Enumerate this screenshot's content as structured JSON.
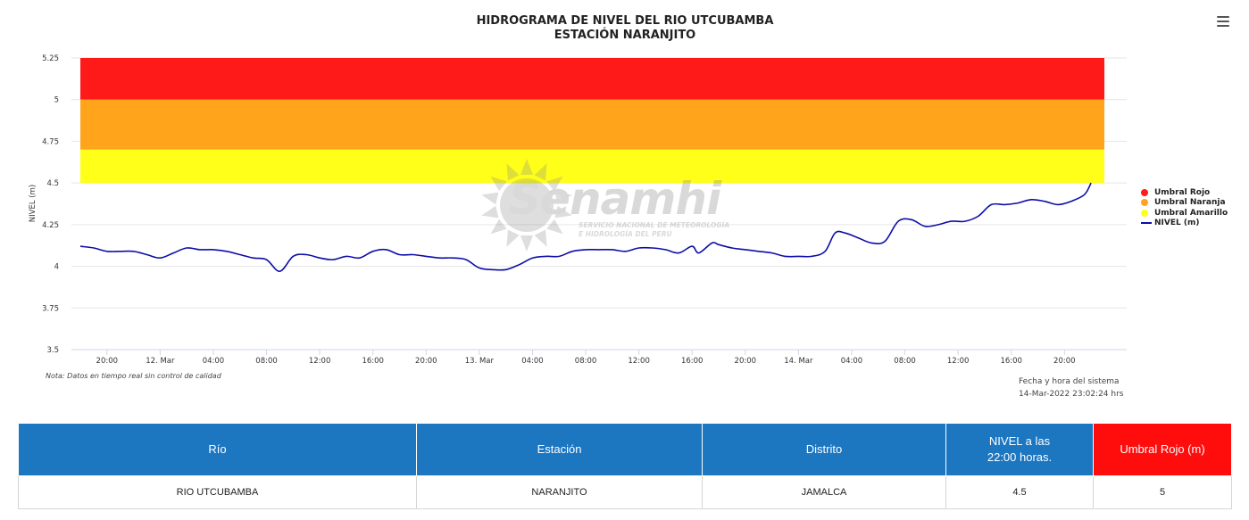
{
  "chart_data": {
    "type": "line",
    "title": "HIDROGRAMA DE NIVEL DEL RIO UTCUBAMBA",
    "subtitle": "ESTACIÓN NARANJITO",
    "ylabel": "NIVEL (m)",
    "ylim": [
      3.5,
      5.25
    ],
    "y_ticks": [
      "5.25",
      "5",
      "4.75",
      "4.5",
      "4.25",
      "4",
      "3.75",
      "3.5"
    ],
    "xlim": [
      "2022-03-11T18:00",
      "2022-03-14T23:00"
    ],
    "x_ticks": [
      {
        "t": "2022-03-11T20:00",
        "label": "20:00"
      },
      {
        "t": "2022-03-12T00:00",
        "label": "12. Mar"
      },
      {
        "t": "2022-03-12T04:00",
        "label": "04:00"
      },
      {
        "t": "2022-03-12T08:00",
        "label": "08:00"
      },
      {
        "t": "2022-03-12T12:00",
        "label": "12:00"
      },
      {
        "t": "2022-03-12T16:00",
        "label": "16:00"
      },
      {
        "t": "2022-03-12T20:00",
        "label": "20:00"
      },
      {
        "t": "2022-03-13T00:00",
        "label": "13. Mar"
      },
      {
        "t": "2022-03-13T04:00",
        "label": "04:00"
      },
      {
        "t": "2022-03-13T08:00",
        "label": "08:00"
      },
      {
        "t": "2022-03-13T12:00",
        "label": "12:00"
      },
      {
        "t": "2022-03-13T16:00",
        "label": "16:00"
      },
      {
        "t": "2022-03-13T20:00",
        "label": "20:00"
      },
      {
        "t": "2022-03-14T00:00",
        "label": "14. Mar"
      },
      {
        "t": "2022-03-14T04:00",
        "label": "04:00"
      },
      {
        "t": "2022-03-14T08:00",
        "label": "08:00"
      },
      {
        "t": "2022-03-14T12:00",
        "label": "12:00"
      },
      {
        "t": "2022-03-14T16:00",
        "label": "16:00"
      },
      {
        "t": "2022-03-14T20:00",
        "label": "20:00"
      }
    ],
    "bands": [
      {
        "name": "Umbral Rojo",
        "from": 5.0,
        "to": 5.25,
        "color": "#ff1a1a"
      },
      {
        "name": "Umbral Naranja",
        "from": 4.7,
        "to": 5.0,
        "color": "#ffa41b"
      },
      {
        "name": "Umbral Amarillo",
        "from": 4.5,
        "to": 4.7,
        "color": "#ffff1a"
      }
    ],
    "series": [
      {
        "name": "NIVEL (m)",
        "color": "#0d0da8",
        "points": [
          [
            "2022-03-11T18:00",
            4.12
          ],
          [
            "2022-03-11T19:00",
            4.11
          ],
          [
            "2022-03-11T20:00",
            4.09
          ],
          [
            "2022-03-11T21:00",
            4.09
          ],
          [
            "2022-03-11T22:00",
            4.09
          ],
          [
            "2022-03-11T23:00",
            4.07
          ],
          [
            "2022-03-12T00:00",
            4.05
          ],
          [
            "2022-03-12T01:00",
            4.08
          ],
          [
            "2022-03-12T02:00",
            4.11
          ],
          [
            "2022-03-12T03:00",
            4.1
          ],
          [
            "2022-03-12T04:00",
            4.1
          ],
          [
            "2022-03-12T05:00",
            4.09
          ],
          [
            "2022-03-12T06:00",
            4.07
          ],
          [
            "2022-03-12T07:00",
            4.05
          ],
          [
            "2022-03-12T08:00",
            4.04
          ],
          [
            "2022-03-12T09:00",
            3.97
          ],
          [
            "2022-03-12T10:00",
            4.06
          ],
          [
            "2022-03-12T11:00",
            4.07
          ],
          [
            "2022-03-12T12:00",
            4.05
          ],
          [
            "2022-03-12T13:00",
            4.04
          ],
          [
            "2022-03-12T14:00",
            4.06
          ],
          [
            "2022-03-12T15:00",
            4.05
          ],
          [
            "2022-03-12T16:00",
            4.09
          ],
          [
            "2022-03-12T17:00",
            4.1
          ],
          [
            "2022-03-12T18:00",
            4.07
          ],
          [
            "2022-03-12T19:00",
            4.07
          ],
          [
            "2022-03-12T20:00",
            4.06
          ],
          [
            "2022-03-12T21:00",
            4.05
          ],
          [
            "2022-03-12T22:00",
            4.05
          ],
          [
            "2022-03-12T23:00",
            4.04
          ],
          [
            "2022-03-13T00:00",
            3.99
          ],
          [
            "2022-03-13T01:00",
            3.98
          ],
          [
            "2022-03-13T02:00",
            3.98
          ],
          [
            "2022-03-13T03:00",
            4.01
          ],
          [
            "2022-03-13T04:00",
            4.05
          ],
          [
            "2022-03-13T05:00",
            4.06
          ],
          [
            "2022-03-13T06:00",
            4.06
          ],
          [
            "2022-03-13T07:00",
            4.09
          ],
          [
            "2022-03-13T08:00",
            4.1
          ],
          [
            "2022-03-13T09:00",
            4.1
          ],
          [
            "2022-03-13T10:00",
            4.1
          ],
          [
            "2022-03-13T11:00",
            4.09
          ],
          [
            "2022-03-13T12:00",
            4.11
          ],
          [
            "2022-03-13T13:00",
            4.11
          ],
          [
            "2022-03-13T14:00",
            4.1
          ],
          [
            "2022-03-13T15:00",
            4.08
          ],
          [
            "2022-03-13T16:00",
            4.12
          ],
          [
            "2022-03-13T16:30",
            4.08
          ],
          [
            "2022-03-13T17:30",
            4.14
          ],
          [
            "2022-03-13T18:00",
            4.13
          ],
          [
            "2022-03-13T19:00",
            4.11
          ],
          [
            "2022-03-13T20:00",
            4.1
          ],
          [
            "2022-03-13T21:00",
            4.09
          ],
          [
            "2022-03-13T22:00",
            4.08
          ],
          [
            "2022-03-13T23:00",
            4.06
          ],
          [
            "2022-03-14T00:00",
            4.06
          ],
          [
            "2022-03-14T01:00",
            4.06
          ],
          [
            "2022-03-14T02:00",
            4.09
          ],
          [
            "2022-03-14T02:45",
            4.2
          ],
          [
            "2022-03-14T03:30",
            4.2
          ],
          [
            "2022-03-14T04:30",
            4.17
          ],
          [
            "2022-03-14T05:30",
            4.14
          ],
          [
            "2022-03-14T06:30",
            4.15
          ],
          [
            "2022-03-14T07:30",
            4.27
          ],
          [
            "2022-03-14T08:30",
            4.28
          ],
          [
            "2022-03-14T09:30",
            4.24
          ],
          [
            "2022-03-14T10:30",
            4.25
          ],
          [
            "2022-03-14T11:30",
            4.27
          ],
          [
            "2022-03-14T12:30",
            4.27
          ],
          [
            "2022-03-14T13:30",
            4.3
          ],
          [
            "2022-03-14T14:30",
            4.37
          ],
          [
            "2022-03-14T15:30",
            4.37
          ],
          [
            "2022-03-14T16:30",
            4.38
          ],
          [
            "2022-03-14T17:30",
            4.4
          ],
          [
            "2022-03-14T18:30",
            4.39
          ],
          [
            "2022-03-14T19:30",
            4.37
          ],
          [
            "2022-03-14T20:30",
            4.39
          ],
          [
            "2022-03-14T21:30",
            4.43
          ],
          [
            "2022-03-14T22:00",
            4.5
          ]
        ]
      }
    ],
    "legend": {
      "position": "right",
      "items": [
        {
          "label": "Umbral Rojo",
          "color": "#ff1a1a",
          "symbol": "dot"
        },
        {
          "label": "Umbral Naranja",
          "color": "#ffa41b",
          "symbol": "dot"
        },
        {
          "label": "Umbral Amarillo",
          "color": "#ffff1a",
          "symbol": "dot"
        },
        {
          "label": "NIVEL (m)",
          "color": "#0d0da8",
          "symbol": "line"
        }
      ]
    },
    "grid": true
  },
  "watermark": {
    "brand": "Senamhi",
    "line1": "SERVICIO NACIONAL DE METEOROLOGÍA",
    "line2": "E HIDROLOGÍA DEL PERÚ"
  },
  "note": "Nota: Datos en tiempo real sin control de calidad",
  "system_time": {
    "label": "Fecha y hora del sistema",
    "value": "14-Mar-2022 23:02:24 hrs"
  },
  "table": {
    "header_color": "#1c76c0",
    "alert_color": "#ff0d0d",
    "headers": {
      "rio": "Río",
      "estacion": "Estación",
      "distrito": "Distrito",
      "nivel_line1": "NIVEL a las",
      "nivel_line2": "22:00 horas.",
      "umbral": "Umbral Rojo (m)"
    },
    "row": {
      "rio": "RIO UTCUBAMBA",
      "estacion": "NARANJITO",
      "distrito": "JAMALCA",
      "nivel": "4.5",
      "umbral": "5"
    }
  }
}
